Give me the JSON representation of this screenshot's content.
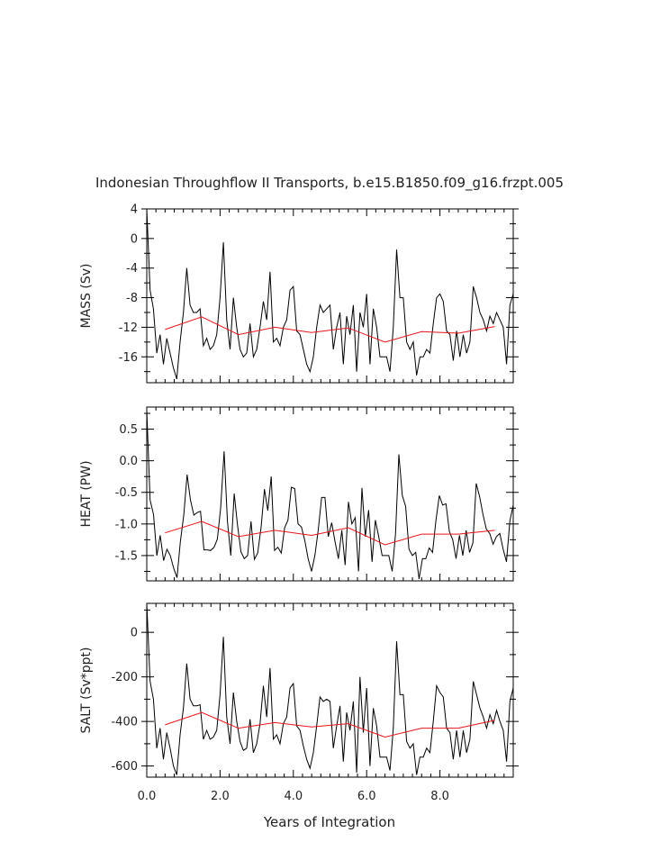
{
  "title": "Indonesian Throughflow II Transports, b.e15.B1850.f09_g16.frzpt.005",
  "x_axis": {
    "label": "Years of Integration",
    "range": [
      0,
      10.0
    ],
    "ticks": [
      0.0,
      2.0,
      4.0,
      6.0,
      8.0
    ],
    "tick_labels": [
      "0.0",
      "2.0",
      "4.0",
      "6.0",
      "8.0"
    ]
  },
  "colors": {
    "monthly": "#000000",
    "annual": "#e8141b"
  },
  "chart_data": [
    {
      "type": "line",
      "ylabel": "MASS (Sv)",
      "ylim": [
        -19.5,
        4
      ],
      "yticks": [
        4,
        0,
        -4,
        -8,
        -12,
        -16
      ],
      "ytick_labels": [
        "4",
        "0",
        "-4",
        "-8",
        "-12",
        "-16"
      ],
      "monthly": [
        4,
        -7,
        -9.5,
        -15.5,
        -13,
        -17,
        -13.5,
        -15.5,
        -17.5,
        -19,
        -14,
        -10,
        -4,
        -9,
        -10,
        -10,
        -9.5,
        -14.5,
        -13.5,
        -15,
        -14.5,
        -13,
        -8,
        -0.5,
        -11,
        -15,
        -8,
        -12,
        -15,
        -16,
        -15.5,
        -11.5,
        -16,
        -15,
        -12,
        -8.5,
        -11,
        -4.5,
        -14,
        -13.5,
        -14.5,
        -12,
        -11,
        -7,
        -6.5,
        -12.5,
        -13,
        -15,
        -17,
        -18,
        -16,
        -12,
        -9,
        -10,
        -9.5,
        -9,
        -15,
        -12,
        -10,
        -17,
        -10.5,
        -13,
        -9,
        -18,
        -10,
        -12,
        -7.5,
        -17,
        -9.5,
        -12,
        -16,
        -16,
        -16,
        -18,
        -12,
        -1.5,
        -8,
        -8,
        -14,
        -15,
        -14,
        -18.5,
        -16,
        -16,
        -15,
        -15.5,
        -11.5,
        -8,
        -7.5,
        -8.5,
        -12.5,
        -13,
        -16.5,
        -12.5,
        -16,
        -13,
        -15.5,
        -14,
        -6.5,
        -8,
        -10,
        -11,
        -12.5,
        -10.5,
        -11.5,
        -10,
        -11,
        -12,
        -17,
        -9,
        -7.5
      ],
      "annual_x": [
        0.5,
        1.5,
        2.5,
        3.5,
        4.5,
        5.5,
        6.5,
        7.5,
        8.5,
        9.5
      ],
      "annual": [
        -12.3,
        -10.6,
        -13,
        -12,
        -12.7,
        -12.1,
        -14,
        -12.6,
        -12.8,
        -11.9
      ]
    },
    {
      "type": "line",
      "ylabel": "HEAT (PW)",
      "ylim": [
        -1.9,
        0.85
      ],
      "yticks": [
        0.5,
        0.0,
        -0.5,
        -1.0,
        -1.5
      ],
      "ytick_labels": [
        "0.5",
        "0.0",
        "-0.5",
        "-1.0",
        "-1.5"
      ],
      "monthly": [
        0.8,
        -0.62,
        -0.85,
        -1.5,
        -1.18,
        -1.58,
        -1.4,
        -1.5,
        -1.7,
        -1.85,
        -1.28,
        -0.86,
        -0.22,
        -0.62,
        -0.86,
        -0.82,
        -0.8,
        -1.41,
        -1.41,
        -1.42,
        -1.37,
        -1.24,
        -0.74,
        0.15,
        -0.96,
        -1.5,
        -0.52,
        -1.02,
        -1.44,
        -1.55,
        -1.5,
        -0.96,
        -1.56,
        -1.46,
        -1.05,
        -0.45,
        -0.79,
        -0.25,
        -1.42,
        -1.37,
        -1.46,
        -1.06,
        -0.94,
        -0.42,
        -0.44,
        -1.0,
        -1.05,
        -1.26,
        -1.55,
        -1.75,
        -1.5,
        -1.1,
        -0.58,
        -0.58,
        -1.2,
        -0.98,
        -1.28,
        -1.55,
        -1.1,
        -1.65,
        -0.65,
        -1.0,
        -0.9,
        -1.75,
        -0.43,
        -1.2,
        -0.78,
        -1.6,
        -0.94,
        -1.2,
        -1.5,
        -1.5,
        -1.5,
        -1.75,
        -1.15,
        0.1,
        -0.55,
        -0.72,
        -1.4,
        -1.5,
        -1.45,
        -1.87,
        -1.55,
        -1.55,
        -1.38,
        -1.45,
        -0.95,
        -0.55,
        -0.7,
        -0.68,
        -1.12,
        -1.25,
        -1.55,
        -1.18,
        -1.5,
        -1.1,
        -1.45,
        -1.3,
        -0.36,
        -0.57,
        -0.85,
        -1.08,
        -1.15,
        -1.32,
        -1.2,
        -1.15,
        -1.4,
        -1.6,
        -0.95,
        -0.7
      ],
      "annual_x": [
        0.5,
        1.5,
        2.5,
        3.5,
        4.5,
        5.5,
        6.5,
        7.5,
        8.5,
        9.5
      ],
      "annual": [
        -1.14,
        -0.96,
        -1.2,
        -1.1,
        -1.18,
        -1.06,
        -1.33,
        -1.16,
        -1.16,
        -1.1
      ]
    },
    {
      "type": "line",
      "ylabel": "SALT (Sv*ppt)",
      "ylim": [
        -650,
        130
      ],
      "yticks": [
        0,
        -200,
        -400,
        -600
      ],
      "ytick_labels": [
        "0",
        "-200",
        "-400",
        "-600"
      ],
      "monthly": [
        130,
        -220,
        -300,
        -520,
        -430,
        -570,
        -450,
        -520,
        -600,
        -640,
        -460,
        -340,
        -140,
        -300,
        -330,
        -330,
        -325,
        -480,
        -440,
        -480,
        -470,
        -440,
        -280,
        -20,
        -380,
        -500,
        -270,
        -400,
        -490,
        -530,
        -520,
        -390,
        -540,
        -500,
        -410,
        -240,
        -380,
        -160,
        -480,
        -460,
        -500,
        -410,
        -380,
        -250,
        -230,
        -420,
        -440,
        -510,
        -570,
        -610,
        -540,
        -420,
        -290,
        -310,
        -300,
        -310,
        -520,
        -420,
        -330,
        -580,
        -360,
        -440,
        -310,
        -630,
        -200,
        -450,
        -250,
        -600,
        -340,
        -420,
        -560,
        -560,
        -560,
        -620,
        -430,
        -40,
        -280,
        -280,
        -490,
        -520,
        -500,
        -640,
        -560,
        -560,
        -520,
        -540,
        -400,
        -240,
        -270,
        -290,
        -430,
        -450,
        -570,
        -440,
        -560,
        -440,
        -540,
        -480,
        -220,
        -280,
        -340,
        -380,
        -430,
        -370,
        -410,
        -350,
        -400,
        -440,
        -580,
        -310,
        -250
      ],
      "annual_x": [
        0.5,
        1.5,
        2.5,
        3.5,
        4.5,
        5.5,
        6.5,
        7.5,
        8.5,
        9.5
      ],
      "annual": [
        -415,
        -360,
        -430,
        -405,
        -425,
        -410,
        -470,
        -430,
        -430,
        -395
      ]
    }
  ]
}
